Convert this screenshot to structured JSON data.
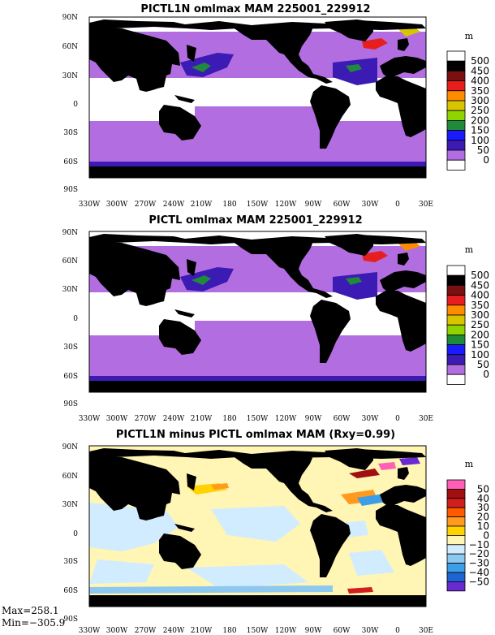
{
  "chart_data": [
    {
      "type": "heatmap",
      "title": "PICTL1N omlmax MAM 225001_229912",
      "units": "m",
      "x_ticks": [
        "330W",
        "300W",
        "270W",
        "240W",
        "210W",
        "180",
        "150W",
        "120W",
        "90W",
        "60W",
        "30W",
        "0",
        "30E"
      ],
      "y_ticks": [
        "90N",
        "60N",
        "30N",
        "0",
        "30S",
        "60S",
        "90S"
      ],
      "colorbar": {
        "labels": [
          "500",
          "450",
          "400",
          "350",
          "300",
          "250",
          "200",
          "150",
          "100",
          "50",
          "0"
        ],
        "colors": [
          "#ffffff",
          "#000000",
          "#7a1010",
          "#e81e1e",
          "#ff8c00",
          "#d9c400",
          "#8fd400",
          "#1f8a3a",
          "#1a1aff",
          "#3c1ab4",
          "#b26ee0",
          "#ffffff"
        ]
      }
    },
    {
      "type": "heatmap",
      "title": "PICTL omlmax MAM 225001_229912",
      "units": "m",
      "x_ticks": [
        "330W",
        "300W",
        "270W",
        "240W",
        "210W",
        "180",
        "150W",
        "120W",
        "90W",
        "60W",
        "30W",
        "0",
        "30E"
      ],
      "y_ticks": [
        "90N",
        "60N",
        "30N",
        "0",
        "30S",
        "60S",
        "90S"
      ],
      "colorbar": {
        "labels": [
          "500",
          "450",
          "400",
          "350",
          "300",
          "250",
          "200",
          "150",
          "100",
          "50",
          "0"
        ],
        "colors": [
          "#ffffff",
          "#000000",
          "#7a1010",
          "#e81e1e",
          "#ff8c00",
          "#d9c400",
          "#8fd400",
          "#1f8a3a",
          "#1a1aff",
          "#3c1ab4",
          "#b26ee0",
          "#ffffff"
        ]
      }
    },
    {
      "type": "heatmap",
      "title": "PICTL1N minus PICTL omlmax MAM (Rxy=0.99)",
      "units": "m",
      "x_ticks": [
        "330W",
        "300W",
        "270W",
        "240W",
        "210W",
        "180",
        "150W",
        "120W",
        "90W",
        "60W",
        "30W",
        "0",
        "30E"
      ],
      "y_ticks": [
        "90N",
        "60N",
        "30N",
        "0",
        "30S",
        "60S",
        "90S"
      ],
      "colorbar": {
        "labels": [
          "50",
          "40",
          "30",
          "20",
          "10",
          "0",
          "−10",
          "−20",
          "−30",
          "−40",
          "−50"
        ],
        "colors": [
          "#ff5fb4",
          "#a01010",
          "#d21e1e",
          "#ff5a00",
          "#ff9a1e",
          "#ffd200",
          "#fff5b4",
          "#d2ecff",
          "#8cc8f0",
          "#3c9ee6",
          "#1e64d2",
          "#6a2ad2"
        ]
      },
      "max": "Max=258.1",
      "min": "Min=−305.9"
    }
  ]
}
